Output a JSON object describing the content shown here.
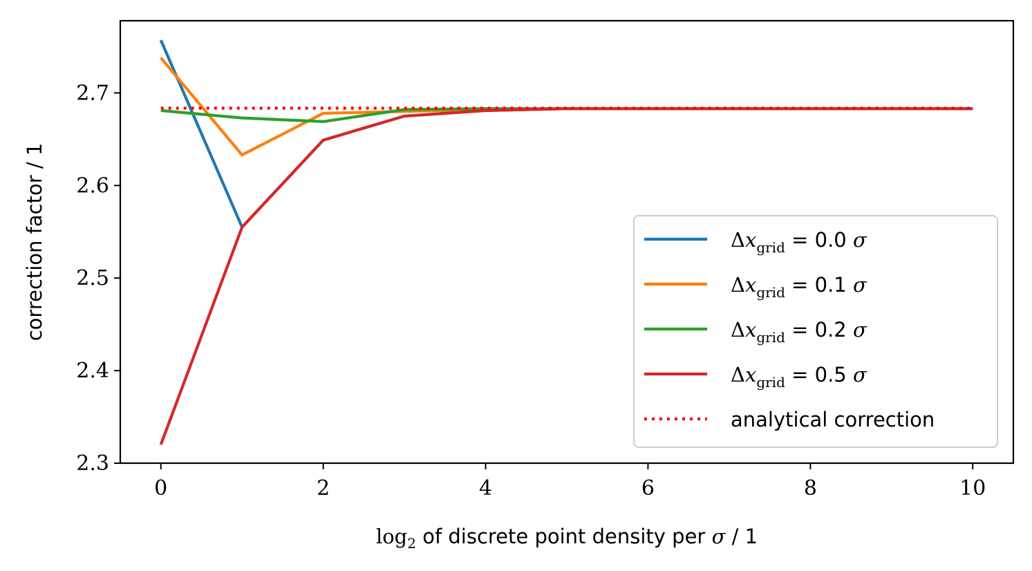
{
  "chart_data": {
    "type": "line",
    "xlabel_parts": {
      "log": "log",
      "sub": "2",
      "text": " of discrete point density per ",
      "sigma": "σ",
      "unit": " / 1"
    },
    "ylabel": "correction factor / 1",
    "xlim": [
      -0.5,
      10.5
    ],
    "ylim": [
      2.3,
      2.778
    ],
    "x_ticks": [
      0,
      2,
      4,
      6,
      8,
      10
    ],
    "y_ticks": [
      2.3,
      2.4,
      2.5,
      2.6,
      2.7
    ],
    "x_tick_labels": [
      "0",
      "2",
      "4",
      "6",
      "8",
      "10"
    ],
    "y_tick_labels": [
      "2.3",
      "2.4",
      "2.5",
      "2.6",
      "2.7"
    ],
    "grid": false,
    "legend_position": "lower-right",
    "x": [
      0,
      1,
      2,
      3,
      4,
      5,
      6,
      7,
      8,
      9,
      10
    ],
    "series": [
      {
        "label_value": "0.0",
        "color": "#1f77b4",
        "style": "solid",
        "values": [
          2.757,
          2.555,
          2.649,
          2.675,
          2.681,
          2.683,
          2.683,
          2.683,
          2.683,
          2.683,
          2.683
        ]
      },
      {
        "label_value": "0.1",
        "color": "#ff7f0e",
        "style": "solid",
        "values": [
          2.738,
          2.633,
          2.678,
          2.68,
          2.682,
          2.683,
          2.683,
          2.683,
          2.683,
          2.683,
          2.683
        ]
      },
      {
        "label_value": "0.2",
        "color": "#2ca02c",
        "style": "solid",
        "values": [
          2.681,
          2.673,
          2.669,
          2.682,
          2.683,
          2.683,
          2.683,
          2.683,
          2.683,
          2.683,
          2.683
        ]
      },
      {
        "label_value": "0.5",
        "color": "#d62728",
        "style": "solid",
        "values": [
          2.32,
          2.555,
          2.649,
          2.675,
          2.681,
          2.683,
          2.683,
          2.683,
          2.683,
          2.683,
          2.683
        ]
      }
    ],
    "analytical": {
      "name": "analytical correction",
      "color": "#ff0000",
      "style": "dotted",
      "value": 2.6835,
      "x_range": [
        0,
        10
      ]
    },
    "legend_label_parts": {
      "delta": "Δ",
      "var": "x",
      "sub": "grid",
      "eq": " = ",
      "unit": " σ"
    }
  }
}
